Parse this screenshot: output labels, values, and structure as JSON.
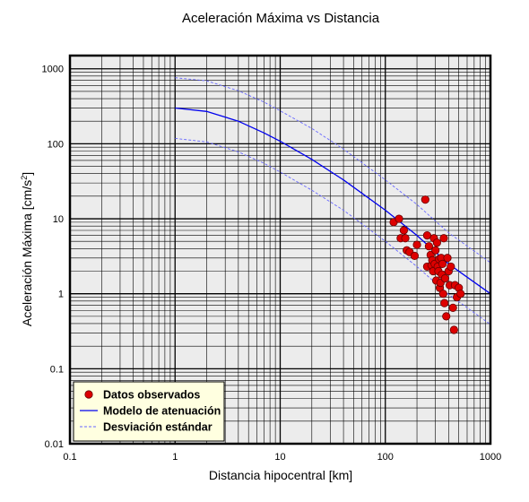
{
  "chart_data": {
    "type": "scatter",
    "title": "Aceleración Máxima vs Distancia",
    "xlabel": "Distancia hipocentral [km]",
    "ylabel_main": "Aceleración Máxima [cm/s",
    "ylabel_sup": "2",
    "ylabel_tail": "]",
    "xscale": "log",
    "yscale": "log",
    "xlim": [
      0.1,
      1000
    ],
    "ylim": [
      0.01,
      1500
    ],
    "x_ticks": [
      {
        "value": 0.1,
        "label": "0.1"
      },
      {
        "value": 1,
        "label": "1"
      },
      {
        "value": 10,
        "label": "10"
      },
      {
        "value": 100,
        "label": "100"
      },
      {
        "value": 1000,
        "label": "1000"
      }
    ],
    "y_ticks": [
      {
        "value": 0.01,
        "label": "0.01"
      },
      {
        "value": 0.1,
        "label": "0.1"
      },
      {
        "value": 1,
        "label": "1"
      },
      {
        "value": 10,
        "label": "10"
      },
      {
        "value": 100,
        "label": "100"
      },
      {
        "value": 1000,
        "label": "1000"
      }
    ],
    "grid": true,
    "legend_position": "bottom-left",
    "series": [
      {
        "name": "Datos observados",
        "kind": "scatter",
        "color": "#dd0000",
        "points": [
          [
            120,
            9.0
          ],
          [
            135,
            10.0
          ],
          [
            140,
            5.5
          ],
          [
            150,
            7.0
          ],
          [
            155,
            5.5
          ],
          [
            160,
            3.8
          ],
          [
            170,
            3.6
          ],
          [
            190,
            3.2
          ],
          [
            200,
            4.5
          ],
          [
            240,
            18
          ],
          [
            250,
            6.0
          ],
          [
            250,
            2.3
          ],
          [
            260,
            4.3
          ],
          [
            270,
            3.3
          ],
          [
            275,
            2.4
          ],
          [
            280,
            2.8
          ],
          [
            285,
            2.0
          ],
          [
            290,
            5.5
          ],
          [
            295,
            2.5
          ],
          [
            300,
            3.8
          ],
          [
            305,
            1.5
          ],
          [
            310,
            4.8
          ],
          [
            315,
            2.3
          ],
          [
            320,
            2.0
          ],
          [
            325,
            2.9
          ],
          [
            330,
            1.2
          ],
          [
            335,
            1.4
          ],
          [
            340,
            3.0
          ],
          [
            345,
            1.8
          ],
          [
            350,
            2.5
          ],
          [
            355,
            1.0
          ],
          [
            360,
            5.5
          ],
          [
            365,
            0.75
          ],
          [
            370,
            1.6
          ],
          [
            380,
            0.5
          ],
          [
            390,
            3.0
          ],
          [
            400,
            2.0
          ],
          [
            410,
            1.3
          ],
          [
            420,
            2.3
          ],
          [
            440,
            0.65
          ],
          [
            450,
            0.33
          ],
          [
            460,
            1.3
          ],
          [
            480,
            0.9
          ],
          [
            500,
            1.2
          ],
          [
            520,
            1.0
          ]
        ]
      },
      {
        "name": "Modelo de atenuación",
        "kind": "line",
        "color": "#0000ee",
        "points": [
          [
            1,
            300
          ],
          [
            2,
            270
          ],
          [
            4,
            200
          ],
          [
            7,
            140
          ],
          [
            10,
            108
          ],
          [
            20,
            62
          ],
          [
            40,
            33
          ],
          [
            100,
            13
          ],
          [
            200,
            6.0
          ],
          [
            400,
            2.5
          ],
          [
            1000,
            1.0
          ]
        ]
      },
      {
        "name": "Desviación estándar",
        "kind": "dashed",
        "color": "#6666ff",
        "bands": [
          [
            [
              1,
              760
            ],
            [
              2,
              690
            ],
            [
              4,
              510
            ],
            [
              7,
              360
            ],
            [
              10,
              275
            ],
            [
              20,
              160
            ],
            [
              40,
              85
            ],
            [
              100,
              33
            ],
            [
              200,
              15.5
            ],
            [
              400,
              6.5
            ],
            [
              1000,
              2.6
            ]
          ],
          [
            [
              1,
              118
            ],
            [
              2,
              106
            ],
            [
              4,
              78
            ],
            [
              7,
              55
            ],
            [
              10,
              42
            ],
            [
              20,
              24
            ],
            [
              40,
              13
            ],
            [
              100,
              5.0
            ],
            [
              200,
              2.3
            ],
            [
              400,
              0.98
            ],
            [
              1000,
              0.39
            ]
          ]
        ]
      }
    ]
  },
  "colors": {
    "plot_background": "#ececec",
    "legend_background": "#ffffe0",
    "grid": "#000000",
    "frame": "#000000"
  }
}
